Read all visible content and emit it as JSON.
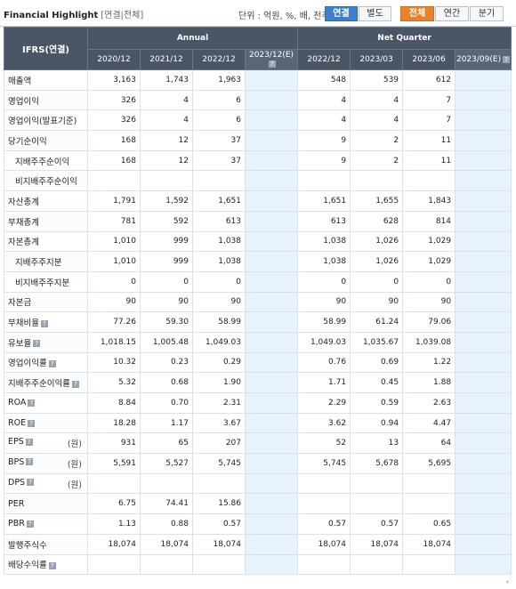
{
  "header": {
    "title": "Financial Highlight",
    "subtitle": "[연결|전체]",
    "unit_label": "단위 : 억원, %, 배, 천주",
    "consol_buttons": [
      "연결",
      "별도"
    ],
    "period_buttons": [
      "전체",
      "연간",
      "분기"
    ]
  },
  "table": {
    "corner_label": "IFRS(연결)",
    "group_annual": "Annual",
    "group_quarter": "Net Quarter",
    "columns": [
      "2020/12",
      "2021/12",
      "2022/12",
      "2023/12(E)",
      "2022/12",
      "2023/03",
      "2023/06",
      "2023/09(E)"
    ],
    "rows": [
      {
        "label": "매출액",
        "values": [
          "3,163",
          "1,743",
          "1,963",
          "",
          "548",
          "539",
          "612",
          ""
        ]
      },
      {
        "label": "영업이익",
        "values": [
          "326",
          "4",
          "6",
          "",
          "4",
          "4",
          "7",
          ""
        ]
      },
      {
        "label": "영업이익(발표기준)",
        "values": [
          "326",
          "4",
          "6",
          "",
          "4",
          "4",
          "7",
          ""
        ]
      },
      {
        "label": "당기순이익",
        "values": [
          "168",
          "12",
          "37",
          "",
          "9",
          "2",
          "11",
          ""
        ]
      },
      {
        "label": "지배주주순이익",
        "values": [
          "168",
          "12",
          "37",
          "",
          "9",
          "2",
          "11",
          ""
        ]
      },
      {
        "label": "비지배주주순이익",
        "values": [
          "",
          "",
          "",
          "",
          "",
          "",
          "",
          ""
        ]
      },
      {
        "label": "자산총계",
        "values": [
          "1,791",
          "1,592",
          "1,651",
          "",
          "1,651",
          "1,655",
          "1,843",
          ""
        ]
      },
      {
        "label": "부채총계",
        "values": [
          "781",
          "592",
          "613",
          "",
          "613",
          "628",
          "814",
          ""
        ]
      },
      {
        "label": "자본총계",
        "values": [
          "1,010",
          "999",
          "1,038",
          "",
          "1,038",
          "1,026",
          "1,029",
          ""
        ]
      },
      {
        "label": "지배주주지분",
        "values": [
          "1,010",
          "999",
          "1,038",
          "",
          "1,038",
          "1,026",
          "1,029",
          ""
        ]
      },
      {
        "label": "비지배주주지분",
        "values": [
          "0",
          "0",
          "0",
          "",
          "0",
          "0",
          "0",
          ""
        ]
      },
      {
        "label": "자본금",
        "values": [
          "90",
          "90",
          "90",
          "",
          "90",
          "90",
          "90",
          ""
        ]
      },
      {
        "label": "부채비율",
        "values": [
          "77.26",
          "59.30",
          "58.99",
          "",
          "58.99",
          "61.24",
          "79.06",
          ""
        ]
      },
      {
        "label": "유보율",
        "values": [
          "1,018.15",
          "1,005.48",
          "1,049.03",
          "",
          "1,049.03",
          "1,035.67",
          "1,039.08",
          ""
        ]
      },
      {
        "label": "영업이익률",
        "values": [
          "10.32",
          "0.23",
          "0.29",
          "",
          "0.76",
          "0.69",
          "1.22",
          ""
        ]
      },
      {
        "label": "지배주주순이익률",
        "values": [
          "5.32",
          "0.68",
          "1.90",
          "",
          "1.71",
          "0.45",
          "1.88",
          ""
        ]
      },
      {
        "label": "ROA",
        "values": [
          "8.84",
          "0.70",
          "2.31",
          "",
          "2.29",
          "0.59",
          "2.63",
          ""
        ]
      },
      {
        "label": "ROE",
        "values": [
          "18.28",
          "1.17",
          "3.67",
          "",
          "3.62",
          "0.94",
          "4.47",
          ""
        ]
      },
      {
        "label": "EPS",
        "unit": "(원)",
        "values": [
          "931",
          "65",
          "207",
          "",
          "52",
          "13",
          "64",
          ""
        ]
      },
      {
        "label": "BPS",
        "unit": "(원)",
        "values": [
          "5,591",
          "5,527",
          "5,745",
          "",
          "5,745",
          "5,678",
          "5,695",
          ""
        ]
      },
      {
        "label": "DPS",
        "unit": "(원)",
        "values": [
          "",
          "",
          "",
          "",
          "",
          "",
          "",
          ""
        ]
      },
      {
        "label": "PER",
        "values": [
          "6.75",
          "74.41",
          "15.86",
          "",
          "",
          "",
          "",
          ""
        ]
      },
      {
        "label": "PBR",
        "values": [
          "1.13",
          "0.88",
          "0.57",
          "",
          "0.57",
          "0.57",
          "0.65",
          ""
        ]
      },
      {
        "label": "발행주식수",
        "values": [
          "18,074",
          "18,074",
          "18,074",
          "",
          "18,074",
          "18,074",
          "18,074",
          ""
        ]
      },
      {
        "label": "배당수익률",
        "values": [
          "",
          "",
          "",
          "",
          "",
          "",
          "",
          ""
        ]
      }
    ]
  }
}
